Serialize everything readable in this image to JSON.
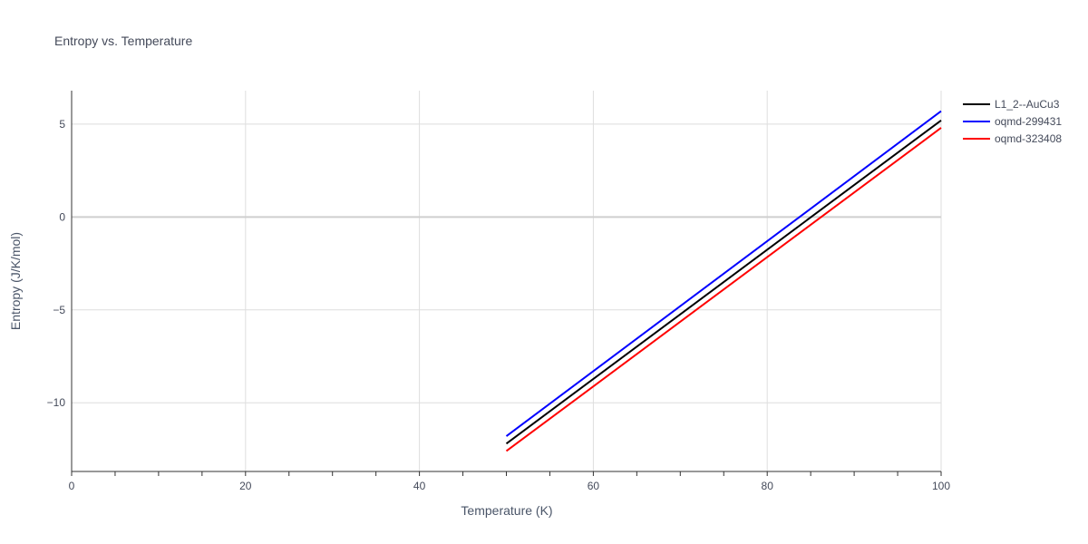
{
  "chart_data": {
    "type": "line",
    "title": "Entropy vs. Temperature",
    "xlabel": "Temperature (K)",
    "ylabel": "Entropy (J/K/mol)",
    "xlim": [
      0,
      100
    ],
    "ylim": [
      -13.7,
      6.8
    ],
    "x_ticks": [
      0,
      20,
      40,
      60,
      80,
      100
    ],
    "x_tick_labels": [
      "0",
      "20",
      "40",
      "60",
      "80",
      "100"
    ],
    "x_minor_step": 5,
    "y_ticks": [
      -10,
      -5,
      0,
      5
    ],
    "y_tick_labels": [
      "−10",
      "−5",
      "0",
      "5"
    ],
    "grid": true,
    "legend_position": "top-right",
    "series": [
      {
        "name": "L1_2--AuCu3",
        "color": "#000000",
        "x": [
          50,
          100
        ],
        "y": [
          -12.2,
          5.2
        ]
      },
      {
        "name": "oqmd-299431",
        "color": "#0000ff",
        "x": [
          50,
          100
        ],
        "y": [
          -11.8,
          5.7
        ]
      },
      {
        "name": "oqmd-323408",
        "color": "#ff0000",
        "x": [
          50,
          100
        ],
        "y": [
          -12.6,
          4.8
        ]
      }
    ]
  }
}
